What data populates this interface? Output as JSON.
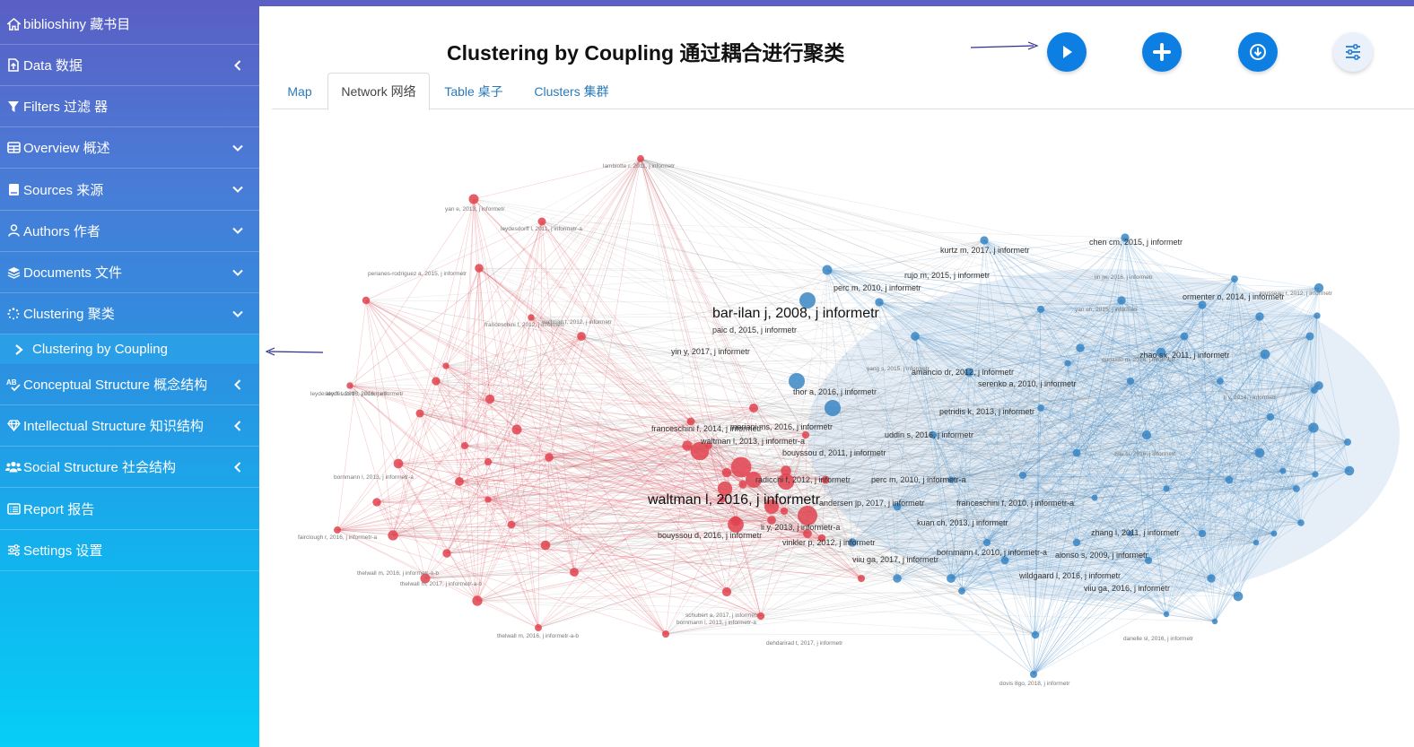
{
  "sidebar": {
    "brand": "biblioshiny 藏书目",
    "items": [
      {
        "label": "Data 数据",
        "icon": "file-upload-icon",
        "chevron": "left"
      },
      {
        "label": "Filters 过滤 器",
        "icon": "filter-icon",
        "chevron": ""
      },
      {
        "label": "Overview 概述",
        "icon": "table-icon",
        "chevron": "down"
      },
      {
        "label": "Sources 来源",
        "icon": "book-icon",
        "chevron": "down"
      },
      {
        "label": "Authors 作者",
        "icon": "user-icon",
        "chevron": "down"
      },
      {
        "label": "Documents 文件",
        "icon": "layers-icon",
        "chevron": "down"
      },
      {
        "label": "Clustering 聚类",
        "icon": "spinner-icon",
        "chevron": "down"
      }
    ],
    "subitem": {
      "label": "Clustering by Coupling",
      "icon": "chevron-right-icon"
    },
    "items2": [
      {
        "label": "Conceptual Structure 概念结构",
        "icon": "spell-check-icon",
        "chevron": "left"
      },
      {
        "label": "Intellectual Structure 知识结构",
        "icon": "gem-icon",
        "chevron": "left"
      },
      {
        "label": "Social Structure 社会结构",
        "icon": "users-icon",
        "chevron": "left"
      },
      {
        "label": "Report 报告",
        "icon": "list-alt-icon",
        "chevron": ""
      },
      {
        "label": "Settings 设置",
        "icon": "sliders-icon",
        "chevron": ""
      }
    ]
  },
  "header": {
    "title": "Clustering by Coupling 通过耦合进行聚类",
    "buttons": [
      {
        "name": "run",
        "icon": "play-icon"
      },
      {
        "name": "add",
        "icon": "plus-icon"
      },
      {
        "name": "download",
        "icon": "download-icon"
      },
      {
        "name": "options",
        "icon": "sliders-icon"
      }
    ]
  },
  "tabs": [
    {
      "label": "Map",
      "active": false
    },
    {
      "label": "Network 网络",
      "active": true
    },
    {
      "label": "Table 桌子",
      "active": false
    },
    {
      "label": "Clusters 集群",
      "active": false
    }
  ],
  "colors": {
    "cluster_red": "#e0434f",
    "cluster_blue": "#3a86c4",
    "accent": "#0d7fe3",
    "arrow": "#2b2f8f"
  },
  "network": {
    "major_labels": [
      "bar-ilan j, 2008, j informetr",
      "waltman l, 2016, j informetr"
    ],
    "medium_labels": [
      "yin y, 2017, j informetr",
      "thor a, 2016, j informetr",
      "franceschini f, 2014, j informetr",
      "mariani ms, 2016, j informetr",
      "bouyssou d, 2011, j informetr",
      "radicchi f, 2012, j informetr",
      "perc m, 2010, j informetr-a",
      "bouyssou d, 2016, j informetr",
      "andersen jp, 2017, j informetr",
      "viiu ga, 2017, j informetr",
      "zhang l, 2011, j informetr",
      "alonso s, 2009, j informetr",
      "petridis k, 2013, j informetr",
      "serenko a, 2010, j informetr",
      "kuan ch, 2013, j informetr",
      "franceschini f, 2010, j informetr-a",
      "vinkler p, 2012, j informetr",
      "uddin s, 2016, j informetr",
      "waltman l, 2013, j informetr-a",
      "li y, 2013, j informetr-a",
      "amancio dr, 2012, j informetr",
      "zhao sx, 2011, j informetr",
      "perc m, 2010, j informetr",
      "ormenter o, 2014, j informetr",
      "paic d, 2015, j informetr",
      "wildgaard l, 2016, j informetr",
      "viiu ga, 2016, j informetr",
      "bornmann l, 2010, j informetr-a",
      "kurtz m, 2017, j informetr",
      "chen cm, 2015, j informetr",
      "rujo m, 2015, j informetr"
    ],
    "small_labels": [
      "lambiotte r, 2011, j informetr",
      "yan e, 2013, j informetr",
      "leydesdorff l, 2011, j informetr-a",
      "perianes-rodriguez a, 2015, j informetr",
      "leydesdorff l, 2016, j informetr",
      "franceschini f, 2012, j informetr",
      "leydesdorff l, 2016, j informetr",
      "waltman l, 2012, j informetr",
      "bornmann l, 2013, j informetr-a",
      "fairclough r, 2016, j informetr-a",
      "thelwall m, 2016, j informetr-a-b",
      "thelwall m, 2017, j informetr-a-b",
      "thelwall m, 2016, j informetr-a-b",
      "schubert a, 2017, j informetr",
      "bornmann l, 2013, j informetr-a",
      "dehdarirad t, 2017, j informetr",
      "dovis 8go, 2018, j informetr",
      "danelle sl, 2016, j informetr",
      "zhu sr, 2016, j informetr",
      "yan eh, 2015, j informetr",
      "lin jw, 2016, j informetr",
      "li y, 2014, j informetr",
      "yang s, 2015, j informetr",
      "dunaiski m, 2016, j informetr",
      "rousseau r, 2012, j informetr"
    ]
  }
}
